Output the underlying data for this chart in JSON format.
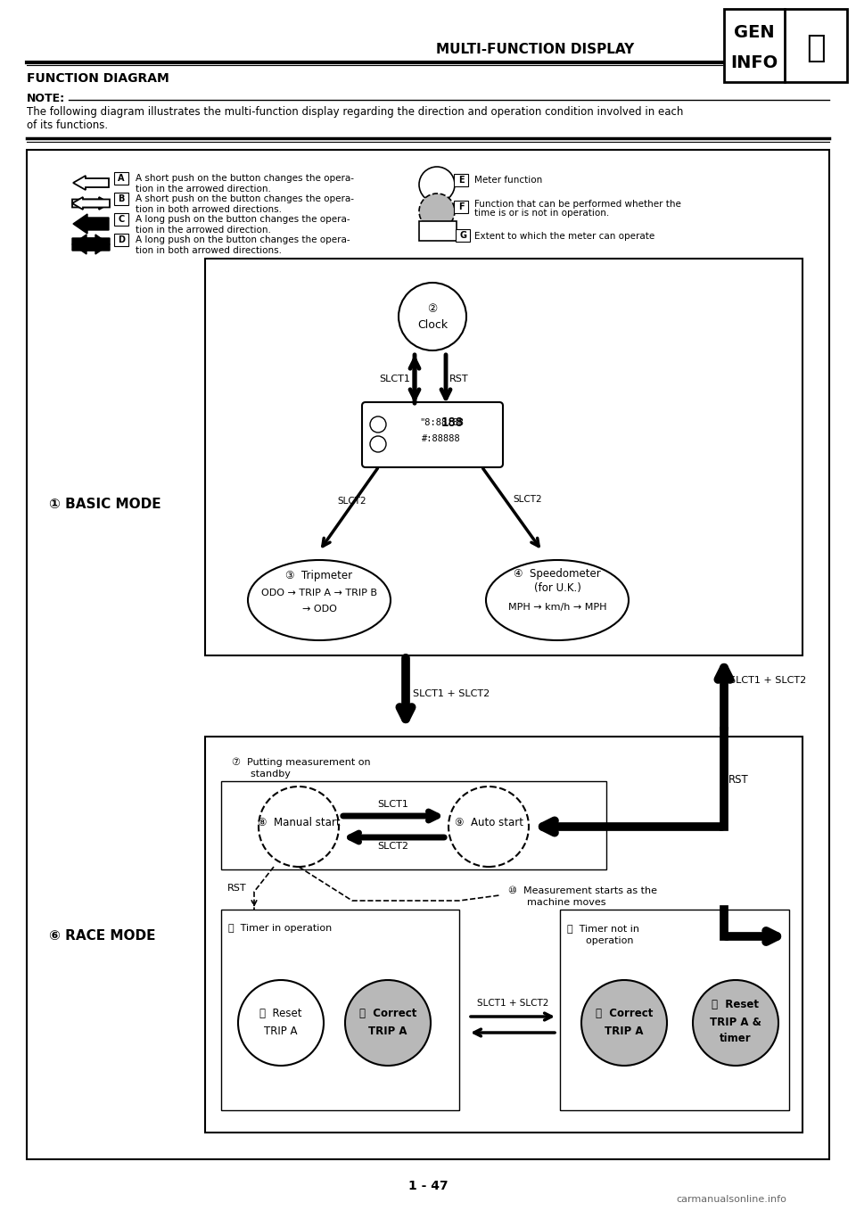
{
  "title": "MULTI-FUNCTION DISPLAY",
  "section_title": "FUNCTION DIAGRAM",
  "note_text": "NOTE:",
  "note_body_1": "The following diagram illustrates the multi-function display regarding the direction and operation condition involved in each",
  "note_body_2": "of its functions.",
  "page_number": "1 - 47",
  "watermark": "carmanualsonline.info",
  "bg": "#ffffff",
  "gen_info_text1": "GEN",
  "gen_info_text2": "INFO",
  "basic_mode_label": "① BASIC MODE",
  "race_mode_label": "⑥ RACE MODE",
  "clock_label": "②  Clock",
  "tripmeter_label": "③  Tripmeter",
  "tripmeter_sub": "ODO → TRIP A → TRIP B\n→ ODO",
  "speedometer_label": "④  Speedometer",
  "speedometer_sub1": "(for U.K.)",
  "speedometer_sub2": "MPH → km/h → MPH",
  "standby_label": "⑦  Putting measurement on\n      standby",
  "manual_label": "⑧  Manual start",
  "auto_label": "⑨  Auto start",
  "meas_label": "⑩  Measurement starts as the\n      machine moves",
  "timer_op_label": "⑪  Timer in operation",
  "reset_trip_label": "⑫  Reset\nTRIP A",
  "correct_trip1_label": "⑬  Correct\nTRIP A",
  "timer_nop_label": "⑭  Timer not in\n      operation",
  "correct_trip2_label": "⑮  Correct\nTRIP A",
  "reset_timer_label": "⑯  Reset\nTRIP A &\ntimer",
  "slct1_lbl": "SLCT1",
  "slct2_lbl": "SLCT2",
  "slct12_lbl": "SLCT1 + SLCT2",
  "rst_lbl": "RST",
  "legend_A_txt": "A short push on the button changes the opera-\ntion in the arrowed direction.",
  "legend_B_txt": "A short push on the button changes the opera-\ntion in both arrowed directions.",
  "legend_C_txt": "A long push on the button changes the opera-\ntion in the arrowed direction.",
  "legend_D_txt": "A long push on the button changes the opera-\ntion in both arrowed directions.",
  "legend_E_txt": "Meter function",
  "legend_F_txt": "Function that can be performed whether the\ntime is or is not in operation.",
  "legend_G_txt": "Extent to which the meter can operate"
}
